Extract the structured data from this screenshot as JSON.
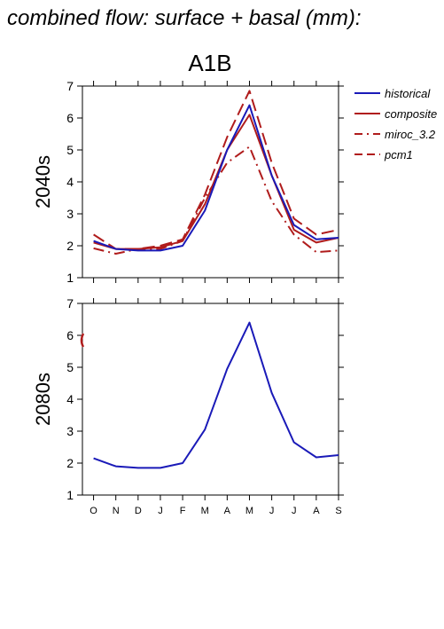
{
  "figure_title": "combined flow: surface + basal (mm):",
  "scenario_title": "A1B",
  "colors": {
    "historical": "#1a1ab8",
    "composite": "#b01c1c",
    "miroc": "#b01c1c",
    "pcm1": "#b01c1c"
  },
  "chart_data": [
    {
      "type": "line",
      "panel_label": "2040s",
      "categories": [
        "O",
        "N",
        "D",
        "J",
        "F",
        "M",
        "A",
        "M",
        "J",
        "J",
        "A",
        "S"
      ],
      "ylim": [
        1,
        7
      ],
      "yticks": [
        "1",
        "2",
        "3",
        "4",
        "5",
        "6",
        "7"
      ],
      "series": [
        {
          "name": "historical",
          "style": "solid",
          "values": [
            2.15,
            1.9,
            1.85,
            1.85,
            2.0,
            3.1,
            5.0,
            6.4,
            4.2,
            2.65,
            2.2,
            2.25
          ]
        },
        {
          "name": "composite",
          "style": "solid",
          "values": [
            2.1,
            1.9,
            1.9,
            1.95,
            2.15,
            3.3,
            5.0,
            6.1,
            4.2,
            2.5,
            2.1,
            2.25
          ]
        },
        {
          "name": "miroc_3.2",
          "style": "dashdot",
          "values": [
            1.92,
            1.75,
            1.9,
            1.9,
            2.15,
            3.5,
            4.6,
            5.1,
            3.4,
            2.35,
            1.8,
            1.85
          ]
        },
        {
          "name": "pcm1",
          "style": "dashed",
          "values": [
            2.35,
            1.9,
            1.9,
            2.0,
            2.2,
            3.6,
            5.4,
            6.85,
            4.6,
            2.85,
            2.35,
            2.5
          ]
        }
      ]
    },
    {
      "type": "line",
      "panel_label": "2080s",
      "categories": [
        "O",
        "N",
        "D",
        "J",
        "F",
        "M",
        "A",
        "M",
        "J",
        "J",
        "A",
        "S"
      ],
      "ylim": [
        1,
        7
      ],
      "yticks": [
        "1",
        "2",
        "3",
        "4",
        "5",
        "6",
        "7"
      ],
      "series": [
        {
          "name": "historical",
          "style": "solid",
          "values": [
            2.15,
            1.9,
            1.85,
            1.85,
            2.0,
            3.05,
            4.95,
            6.4,
            4.2,
            2.65,
            2.18,
            2.25
          ]
        }
      ]
    }
  ]
}
